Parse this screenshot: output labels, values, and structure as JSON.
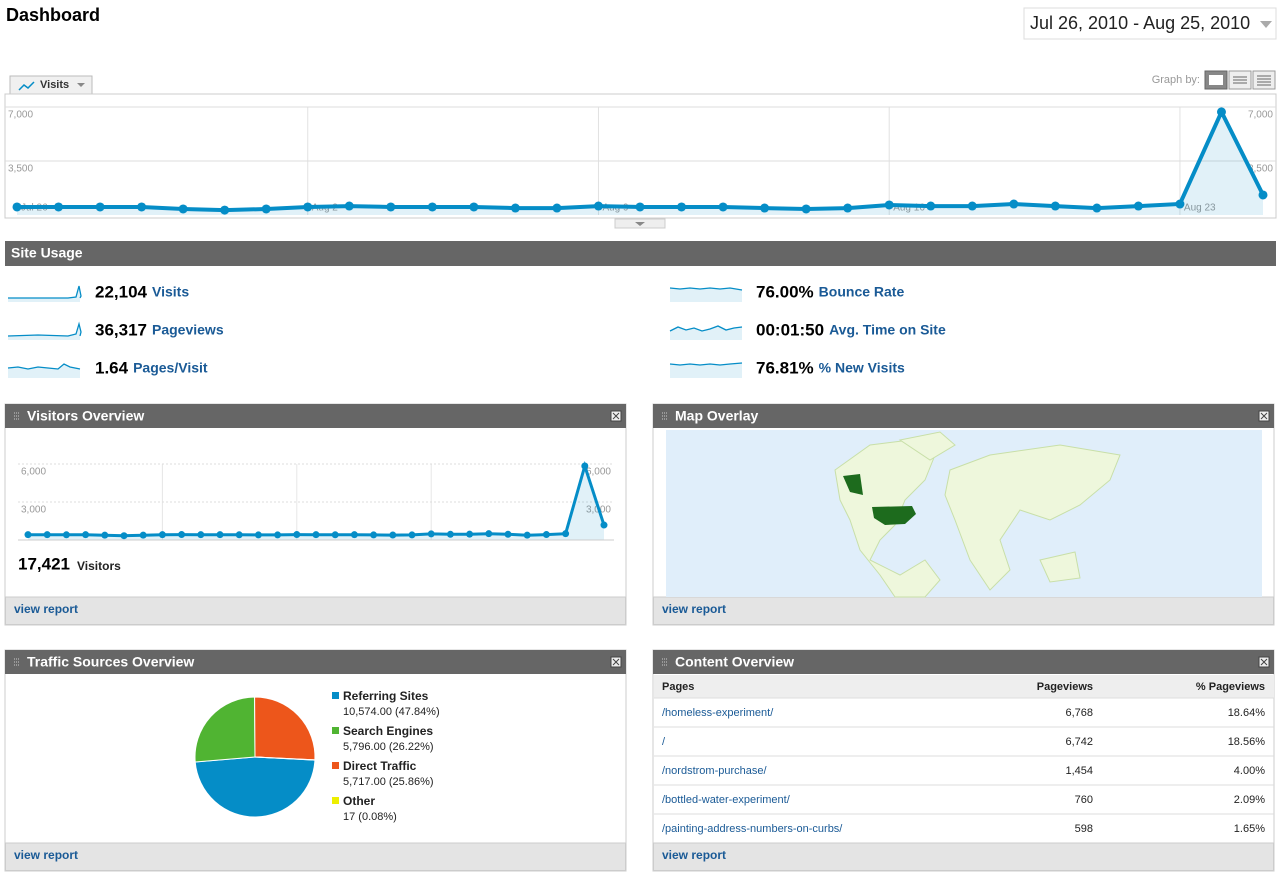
{
  "header": {
    "title": "Dashboard",
    "date_range": "Jul 26, 2010 - Aug 25, 2010"
  },
  "graph_controls": {
    "metric": "Visits",
    "label": "Graph by:"
  },
  "chart_data": [
    {
      "type": "area",
      "color": "#058dc7",
      "categories": [
        "Jul 26",
        null,
        null,
        null,
        null,
        null,
        null,
        "Aug 2",
        null,
        null,
        null,
        null,
        null,
        null,
        "Aug 9",
        null,
        null,
        null,
        null,
        null,
        null,
        "Aug 16",
        null,
        null,
        null,
        null,
        null,
        null,
        "Aug 23",
        null,
        null
      ],
      "values": [
        520,
        520,
        520,
        520,
        390,
        320,
        390,
        520,
        580,
        520,
        520,
        520,
        450,
        450,
        580,
        520,
        520,
        520,
        450,
        390,
        450,
        650,
        580,
        580,
        710,
        580,
        450,
        580,
        710,
        6680,
        1300
      ],
      "ylim": [
        0,
        7000
      ],
      "yticks": [
        {
          "value": 3500,
          "label": "3,500"
        },
        {
          "value": 7000,
          "label": "7,000"
        }
      ],
      "grid": true
    },
    {
      "type": "area",
      "color": "#058dc7",
      "values": [
        420,
        420,
        410,
        420,
        380,
        340,
        380,
        420,
        430,
        420,
        420,
        410,
        400,
        400,
        430,
        420,
        410,
        420,
        400,
        390,
        400,
        480,
        450,
        460,
        500,
        450,
        380,
        430,
        500,
        5840,
        1180
      ],
      "ylim": [
        0,
        6000
      ],
      "yticks": [
        {
          "value": 3000,
          "label": "3,000"
        },
        {
          "value": 6000,
          "label": "6,000"
        }
      ],
      "grid": true
    },
    {
      "type": "pie",
      "categories": [
        "Referring Sites",
        "Search Engines",
        "Direct Traffic",
        "Other"
      ],
      "values": [
        10574,
        5796,
        5717,
        17
      ],
      "value_labels": [
        "10,574.00 (47.84%)",
        "5,796.00 (26.22%)",
        "5,717.00 (25.86%)",
        "17 (0.08%)"
      ],
      "colors": [
        "#058dc7",
        "#50b432",
        "#ed561b",
        "#edef00"
      ]
    }
  ],
  "site_usage": {
    "title": "Site Usage",
    "metrics": [
      {
        "value": "22,104",
        "label": "Visits"
      },
      {
        "value": "36,317",
        "label": "Pageviews"
      },
      {
        "value": "1.64",
        "label": "Pages/Visit"
      },
      {
        "value": "76.00%",
        "label": "Bounce Rate"
      },
      {
        "value": "00:01:50",
        "label": "Avg. Time on Site"
      },
      {
        "value": "76.81%",
        "label": "% New Visits"
      }
    ]
  },
  "visitors_overview": {
    "title": "Visitors Overview",
    "total": "17,421",
    "total_label": "Visitors",
    "link": "view report"
  },
  "map_overlay": {
    "title": "Map Overlay",
    "link": "view report"
  },
  "traffic_sources": {
    "title": "Traffic Sources Overview",
    "link": "view report"
  },
  "content_overview": {
    "title": "Content Overview",
    "columns": [
      "Pages",
      "Pageviews",
      "% Pageviews"
    ],
    "rows": [
      [
        "/homeless-experiment/",
        "6,768",
        "18.64%"
      ],
      [
        "/",
        "6,742",
        "18.56%"
      ],
      [
        "/nordstrom-purchase/",
        "1,454",
        "4.00%"
      ],
      [
        "/bottled-water-experiment/",
        "760",
        "2.09%"
      ],
      [
        "/painting-address-numbers-on-curbs/",
        "598",
        "1.65%"
      ]
    ],
    "link": "view report"
  }
}
